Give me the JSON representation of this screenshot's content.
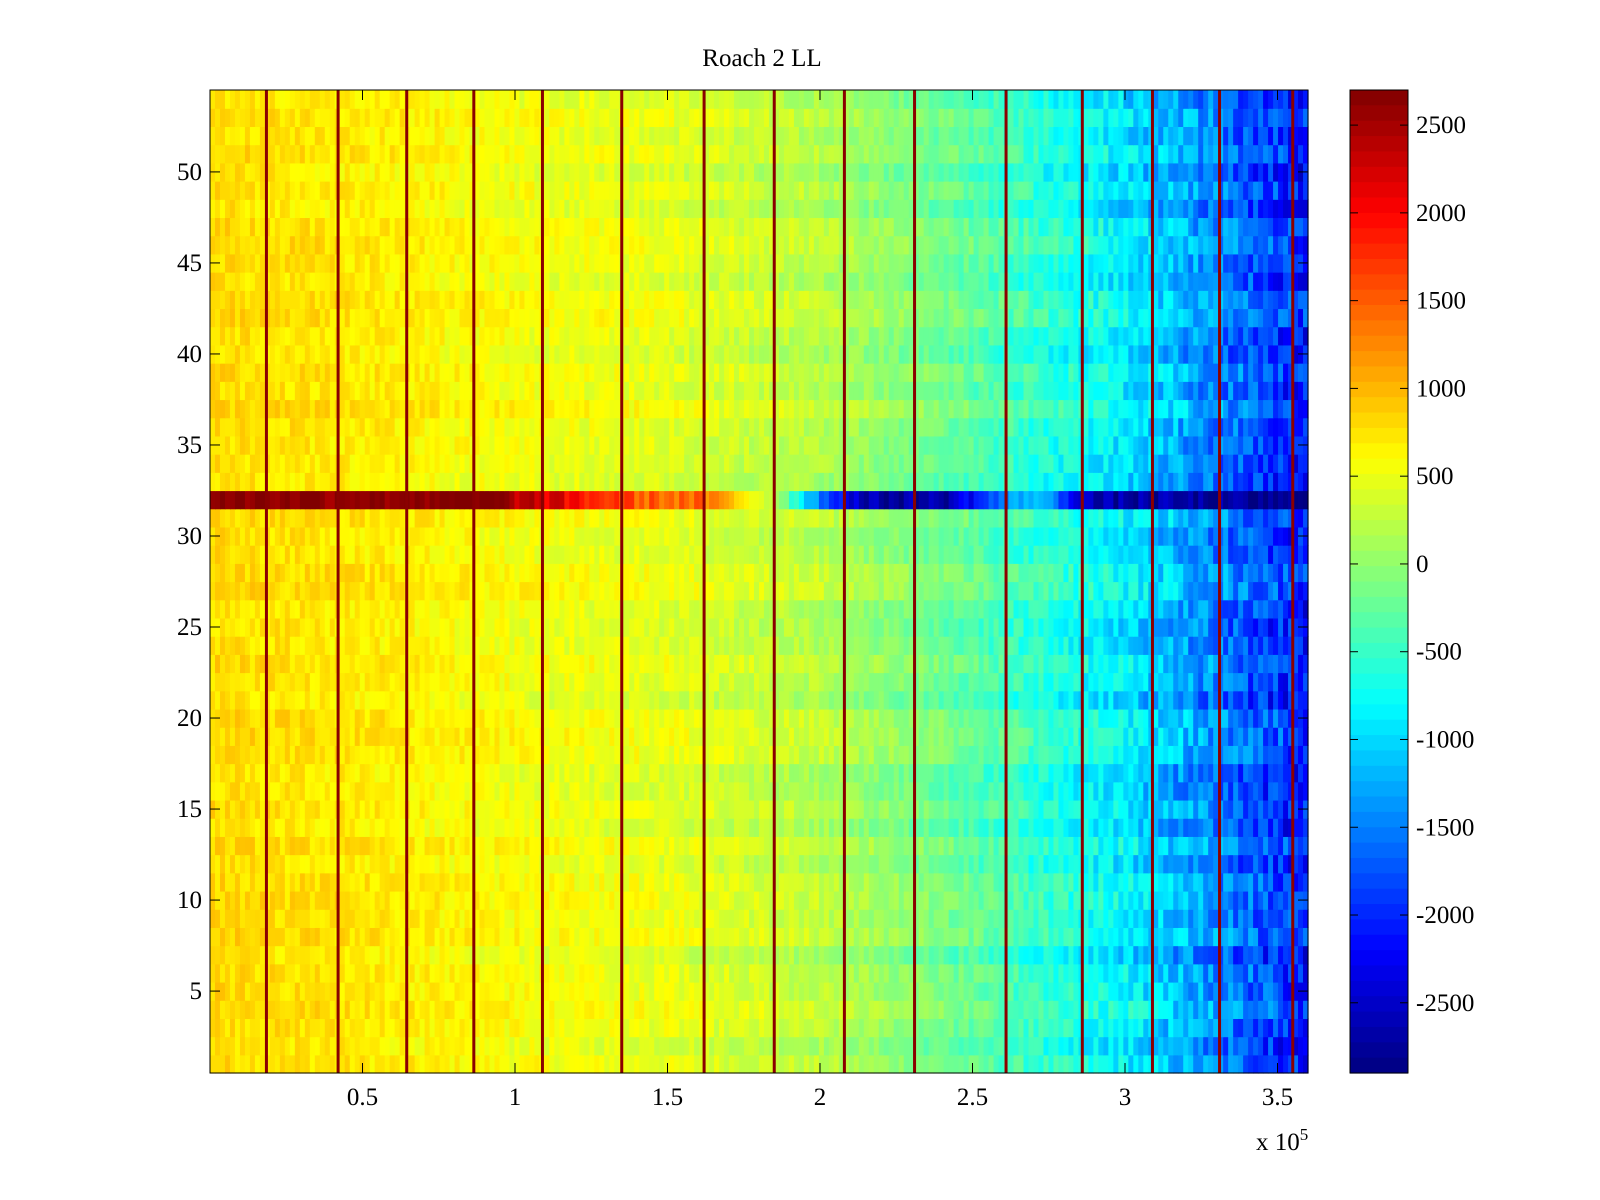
{
  "chart_data": {
    "type": "heatmap",
    "title": "Roach 2 LL",
    "xlabel": "",
    "ylabel": "",
    "x_exponent_label": {
      "base": "x 10",
      "exponent": "5"
    },
    "xlim": [
      0,
      3.6
    ],
    "x_scale_factor": 100000,
    "ylim": [
      0.5,
      54.5
    ],
    "n_channels": 54,
    "x_ticks": [
      0.5,
      1,
      1.5,
      2,
      2.5,
      3,
      3.5
    ],
    "x_tick_labels": [
      "0.5",
      "1",
      "1.5",
      "2",
      "2.5",
      "3",
      "3.5"
    ],
    "y_ticks": [
      5,
      10,
      15,
      20,
      25,
      30,
      35,
      40,
      45,
      50
    ],
    "y_tick_labels": [
      "5",
      "10",
      "15",
      "20",
      "25",
      "30",
      "35",
      "40",
      "45",
      "50"
    ],
    "colorbar": {
      "colormap": "jet",
      "range": [
        -2900,
        2700
      ],
      "ticks": [
        2500,
        2000,
        1500,
        1000,
        500,
        0,
        -500,
        -1000,
        -1500,
        -2000,
        -2500
      ],
      "tick_labels": [
        "2500",
        "2000",
        "1500",
        "1000",
        "500",
        "0",
        "-500",
        "-1000",
        "-1500",
        "-2000",
        "-2500"
      ]
    },
    "value_trend": {
      "x": [
        0,
        0.5,
        1.0,
        1.5,
        2.0,
        2.5,
        3.0,
        3.3,
        3.6
      ],
      "typical_value": [
        800,
        700,
        550,
        450,
        200,
        -300,
        -900,
        -1500,
        -2100
      ]
    },
    "anomalous_channel": {
      "channel": 32,
      "x": [
        0,
        0.3,
        0.6,
        0.9,
        1.1,
        1.4,
        1.6,
        1.85,
        2.0,
        2.15,
        2.4,
        2.7,
        2.9,
        3.1,
        3.6
      ],
      "value": [
        2700,
        2700,
        2700,
        2700,
        2200,
        1500,
        1400,
        300,
        -1500,
        -2700,
        -2700,
        -1000,
        -2700,
        -2700,
        -2900
      ]
    },
    "vertical_stripes_x": [
      0.185,
      0.42,
      0.645,
      0.865,
      1.09,
      1.35,
      1.62,
      1.85,
      2.08,
      2.31,
      2.61,
      2.86,
      3.09,
      3.31,
      3.55
    ]
  }
}
